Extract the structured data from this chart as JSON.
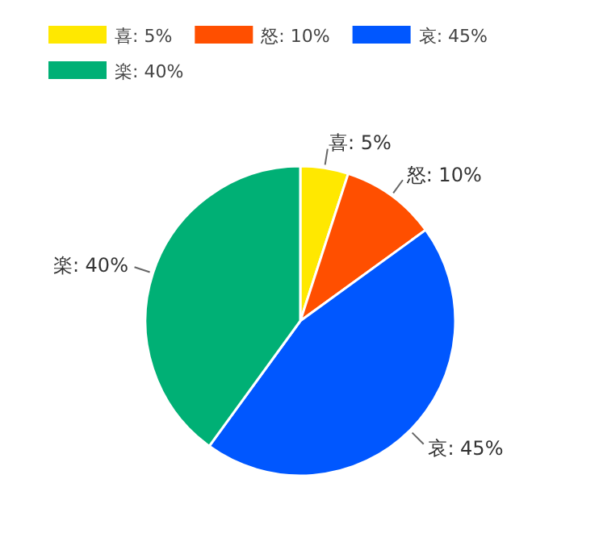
{
  "chart_data": {
    "type": "pie",
    "categories": [
      "喜: 5%",
      "怒: 10%",
      "哀: 45%",
      "楽: 40%"
    ],
    "values": [
      5,
      10,
      45,
      40
    ],
    "colors": [
      "#ffe800",
      "#ff4f00",
      "#0057ff",
      "#00b075"
    ],
    "legend": "top left"
  }
}
